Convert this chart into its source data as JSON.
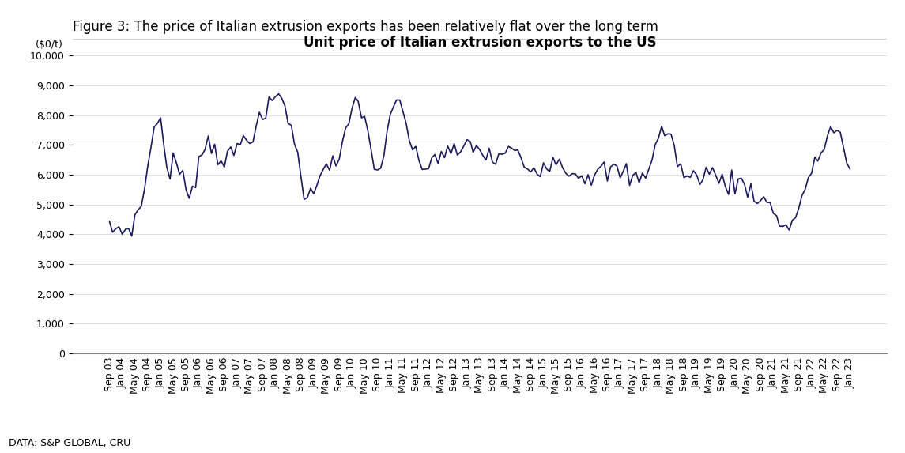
{
  "title_figure": "Figure 3: The price of Italian extrusion exports has been relatively flat over the long term",
  "title_chart": "Unit price of Italian extrusion exports to the US",
  "ylabel": "($0/t)",
  "source": "DATA: S&P GLOBAL, CRU",
  "line_color": "#1a1a5e",
  "line_width": 1.2,
  "background_color": "#ffffff",
  "ylim": [
    0,
    10000
  ],
  "yticks": [
    0,
    1000,
    2000,
    3000,
    4000,
    5000,
    6000,
    7000,
    8000,
    9000,
    10000
  ],
  "figure_title_fontsize": 12,
  "chart_title_fontsize": 12,
  "tick_fontsize": 9,
  "ylabel_fontsize": 9,
  "source_fontsize": 9
}
